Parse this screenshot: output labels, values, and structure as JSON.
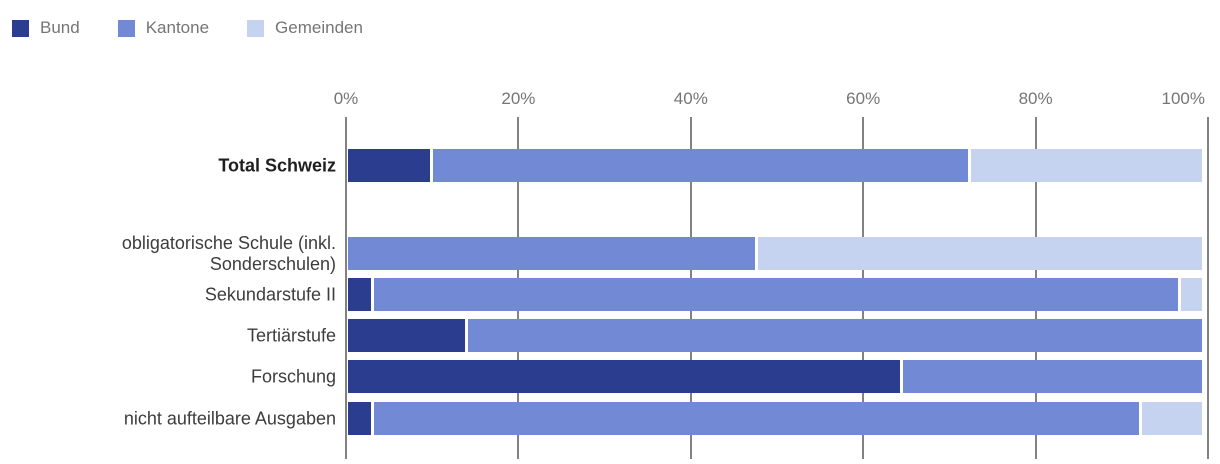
{
  "chart_data": {
    "type": "bar",
    "stacked": true,
    "orientation": "horizontal",
    "title": "",
    "xlabel": "",
    "ylabel": "",
    "xlim": [
      0,
      100
    ],
    "x_ticks": [
      "0%",
      "20%",
      "40%",
      "60%",
      "80%",
      "100%"
    ],
    "grid": "vertical",
    "legend_position": "top-left",
    "categories": [
      "Total Schweiz",
      "obligatorische Schule (inkl. Sonderschulen)",
      "Sekundarstufe II",
      "Tertiärstufe",
      "Forschung",
      "nicht aufteilbare Ausgaben"
    ],
    "emphasized_category": "Total Schweiz",
    "series": [
      {
        "name": "Bund",
        "color": "#2b3d8f",
        "values": [
          10,
          0,
          3,
          14,
          65,
          3
        ]
      },
      {
        "name": "Kantone",
        "color": "#7289d5",
        "values": [
          63,
          48,
          94.5,
          86,
          35,
          90
        ]
      },
      {
        "name": "Gemeinden",
        "color": "#c5d2f0",
        "values": [
          27,
          52,
          2.5,
          0,
          0,
          7
        ]
      }
    ]
  },
  "colors": {
    "gridline": "#828282",
    "axis_text": "#757575",
    "legend_text": "#757575",
    "category_text": "#3d3d3d",
    "emphasized_category_text": "#1f1f1f",
    "background": "#ffffff"
  }
}
